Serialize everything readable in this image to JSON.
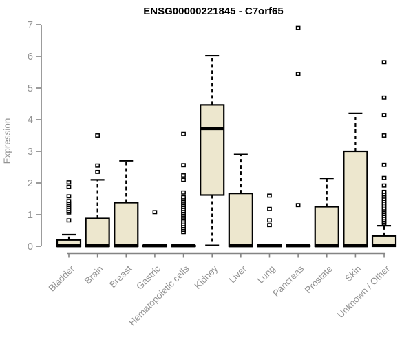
{
  "chart_data": {
    "type": "boxplot",
    "title": "ENSG00000221845 - C7orf65",
    "ylabel": "Expression",
    "xlabel": "",
    "ylim": [
      0,
      7
    ],
    "yticks": [
      0,
      1,
      2,
      3,
      4,
      5,
      6,
      7
    ],
    "grid": false,
    "legend": "none",
    "categories": [
      "Bladder",
      "Brain",
      "Breast",
      "Gastric",
      "Hematopoietic cells",
      "Kidney",
      "Liver",
      "Lung",
      "Pancreas",
      "Prostate",
      "Skin",
      "Unknown / Other"
    ],
    "series": [
      {
        "category": "Bladder",
        "q1": 0,
        "median": 0.02,
        "q3": 0.2,
        "whisker_low": 0,
        "whisker_high": 0.37,
        "outliers": [
          0.82,
          1.07,
          1.12,
          1.18,
          1.24,
          1.3,
          1.36,
          1.43,
          1.58,
          1.88,
          2.02
        ]
      },
      {
        "category": "Brain",
        "q1": 0,
        "median": 0.02,
        "q3": 0.88,
        "whisker_low": 0,
        "whisker_high": 2.1,
        "outliers": [
          2.35,
          2.55,
          3.5
        ]
      },
      {
        "category": "Breast",
        "q1": 0,
        "median": 0.02,
        "q3": 1.38,
        "whisker_low": 0,
        "whisker_high": 2.7,
        "outliers": []
      },
      {
        "category": "Gastric",
        "q1": 0,
        "median": 0.02,
        "q3": 0.02,
        "whisker_low": 0,
        "whisker_high": 0.02,
        "outliers": [
          1.08
        ]
      },
      {
        "category": "Hematopoietic cells",
        "q1": 0,
        "median": 0.02,
        "q3": 0.02,
        "whisker_low": 0,
        "whisker_high": 0.02,
        "outliers": [
          0.45,
          0.52,
          0.58,
          0.64,
          0.7,
          0.76,
          0.82,
          0.88,
          0.94,
          1.0,
          1.06,
          1.12,
          1.18,
          1.24,
          1.3,
          1.36,
          1.42,
          1.49,
          1.55,
          1.7,
          2.1,
          2.24,
          2.56,
          3.55
        ]
      },
      {
        "category": "Kidney",
        "q1": 1.62,
        "median": 3.72,
        "q3": 4.47,
        "whisker_low": 0.03,
        "whisker_high": 6.02,
        "outliers": []
      },
      {
        "category": "Liver",
        "q1": 0,
        "median": 0.02,
        "q3": 1.67,
        "whisker_low": 0,
        "whisker_high": 2.9,
        "outliers": []
      },
      {
        "category": "Lung",
        "q1": 0,
        "median": 0.02,
        "q3": 0.02,
        "whisker_low": 0,
        "whisker_high": 0.02,
        "outliers": [
          0.67,
          0.82,
          1.18,
          1.6
        ]
      },
      {
        "category": "Pancreas",
        "q1": 0,
        "median": 0.02,
        "q3": 0.02,
        "whisker_low": 0,
        "whisker_high": 0.02,
        "outliers": [
          1.3,
          5.45,
          6.9
        ]
      },
      {
        "category": "Prostate",
        "q1": 0,
        "median": 0.02,
        "q3": 1.25,
        "whisker_low": 0,
        "whisker_high": 2.15,
        "outliers": []
      },
      {
        "category": "Skin",
        "q1": 0,
        "median": 0.02,
        "q3": 3.0,
        "whisker_low": 0,
        "whisker_high": 4.2,
        "outliers": []
      },
      {
        "category": "Unknown / Other",
        "q1": 0,
        "median": 0.03,
        "q3": 0.33,
        "whisker_low": 0,
        "whisker_high": 0.65,
        "outliers": [
          0.72,
          0.78,
          0.84,
          0.9,
          0.96,
          1.02,
          1.08,
          1.14,
          1.2,
          1.26,
          1.32,
          1.38,
          1.44,
          1.5,
          1.57,
          1.64,
          1.72,
          1.92,
          2.16,
          2.57,
          3.5,
          4.15,
          4.7,
          5.82
        ]
      }
    ],
    "colors": {
      "box_fill": "#EDE7CE",
      "box_stroke": "#000000",
      "axis_color": "#848484",
      "label_color": "#939393",
      "title_color": "#000000",
      "background": "#ffffff"
    }
  }
}
